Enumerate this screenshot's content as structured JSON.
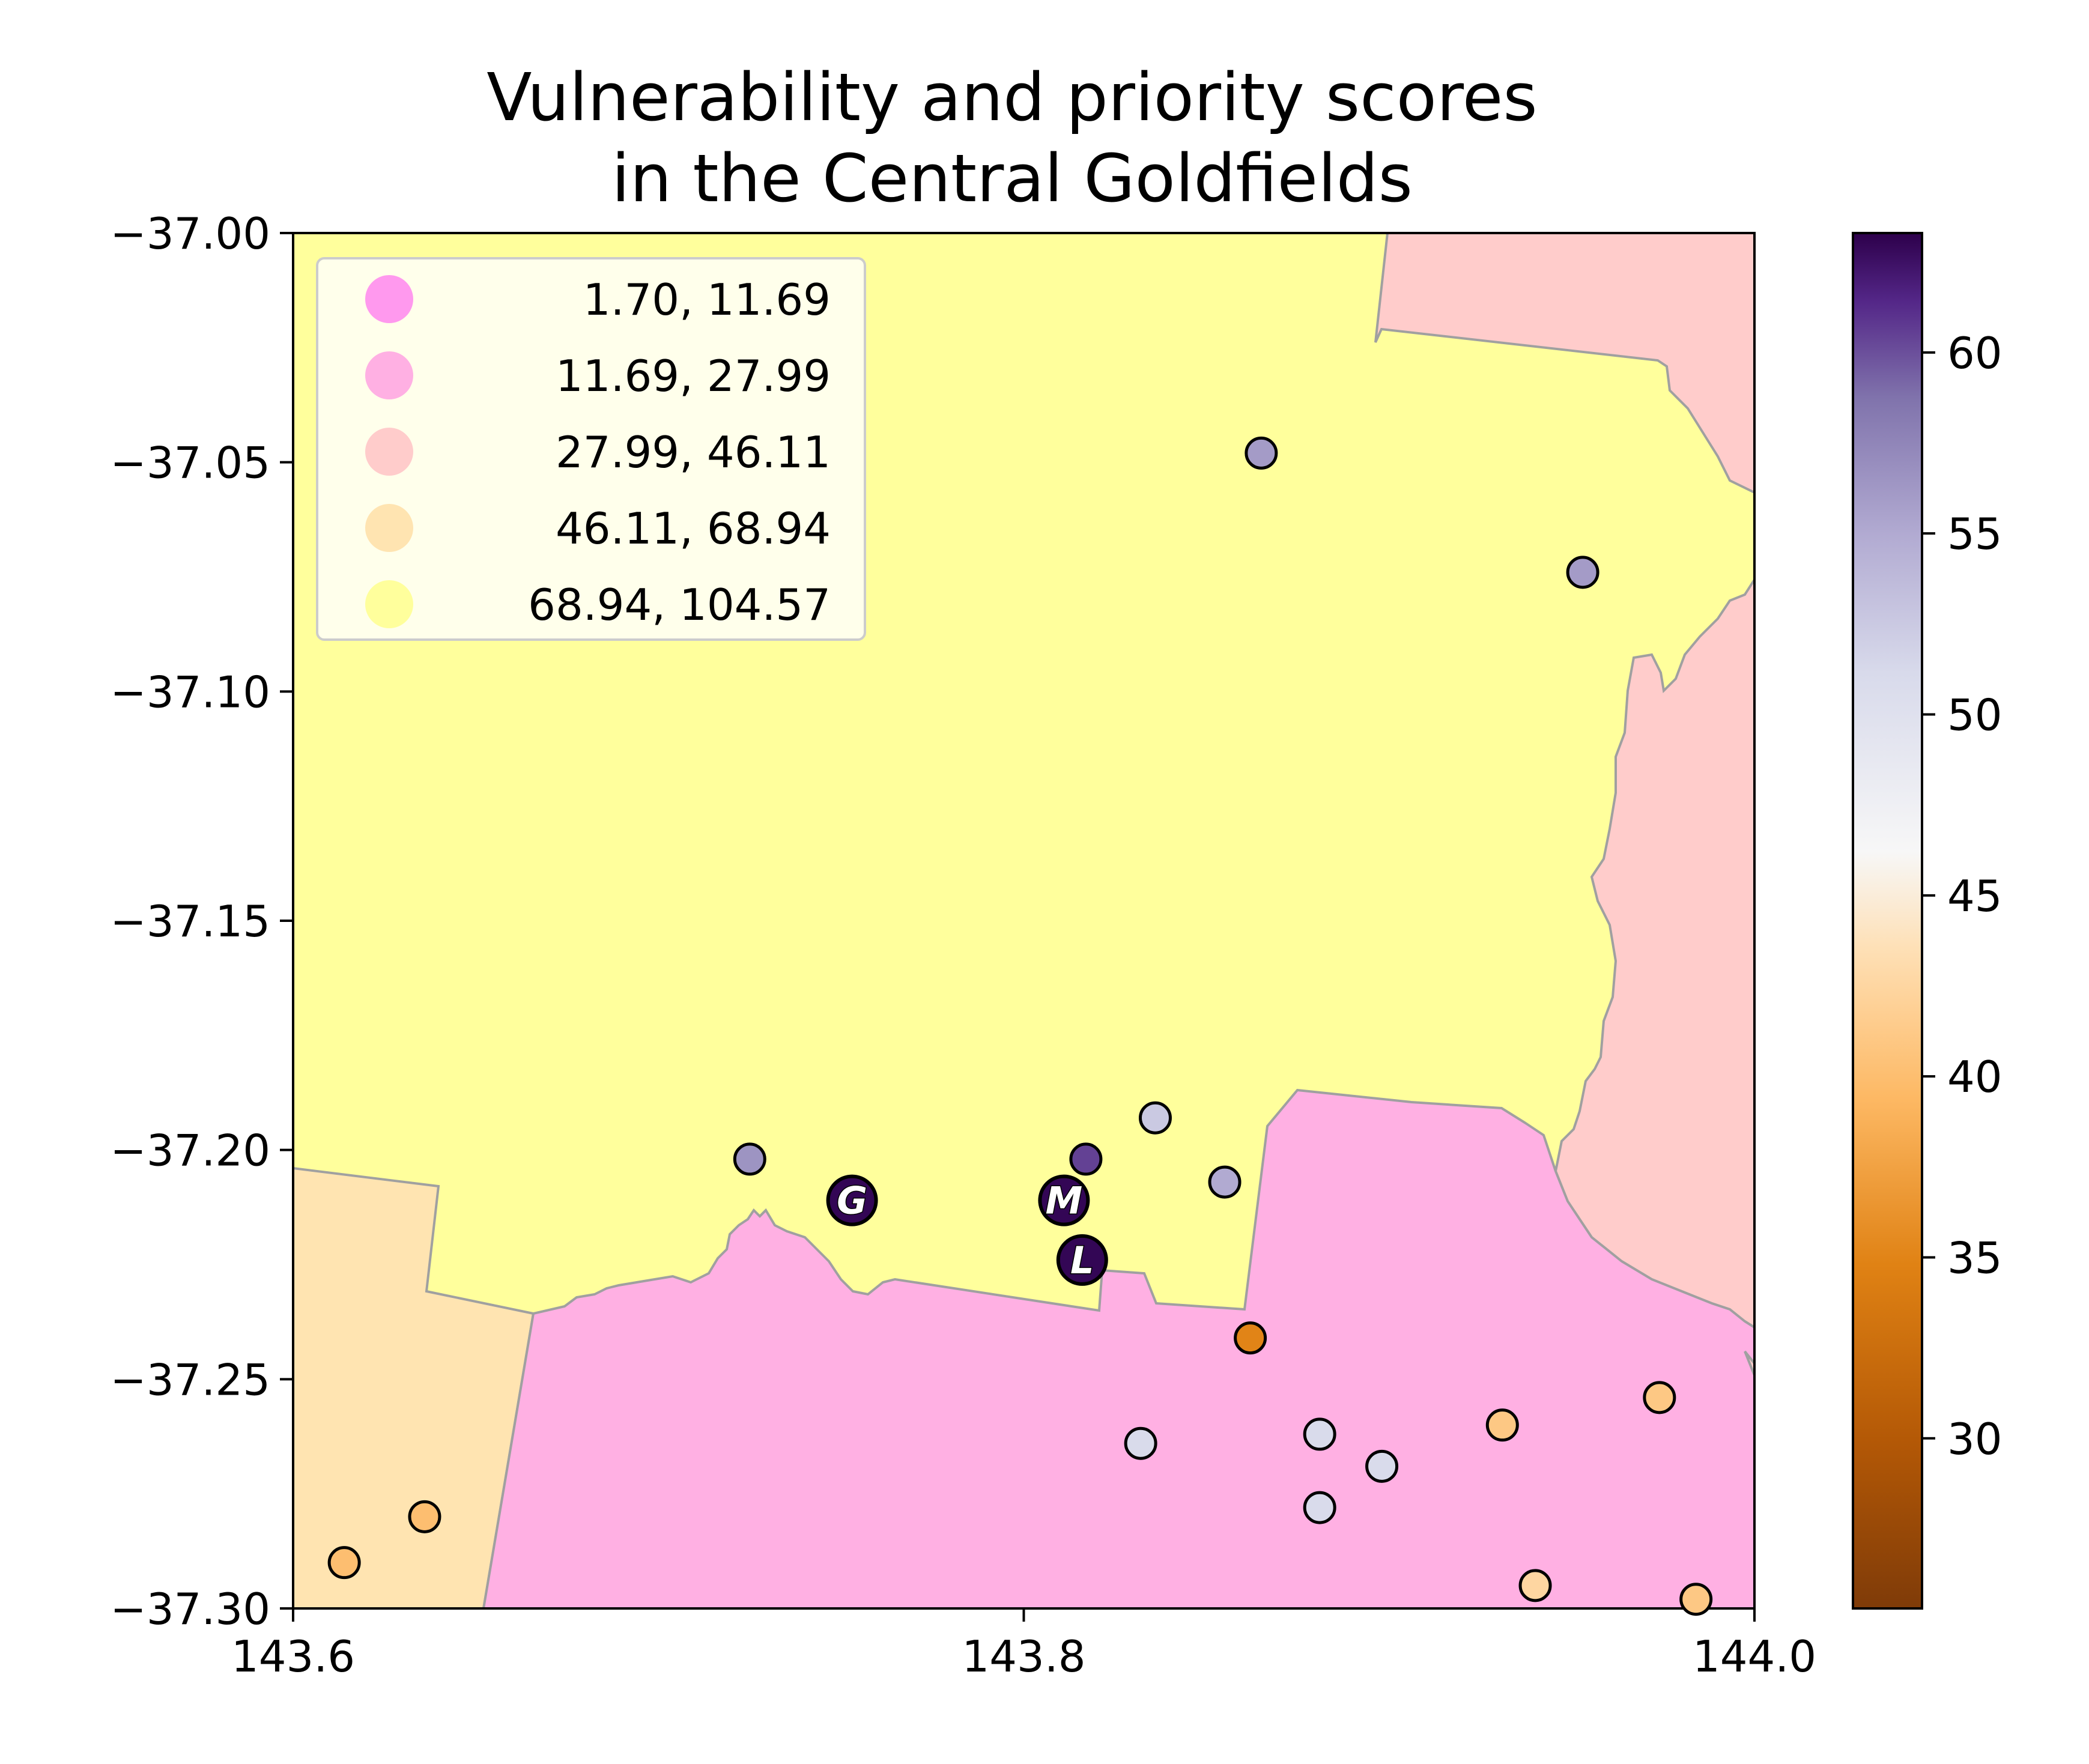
{
  "title_line1": "Vulnerability and priority scores",
  "title_line2": "in the Central Goldfields",
  "map": {
    "x_range": [
      143.6,
      144.0
    ],
    "y_range": [
      -37.3,
      -37.0
    ],
    "x_ticks": [
      "143.6",
      "143.8",
      "144.0"
    ],
    "x_tick_values": [
      143.6,
      143.8,
      144.0
    ],
    "y_ticks": [
      "−37.00",
      "−37.05",
      "−37.10",
      "−37.15",
      "−37.20",
      "−37.25",
      "−37.30"
    ],
    "y_tick_values": [
      -37.0,
      -37.05,
      -37.1,
      -37.15,
      -37.2,
      -37.25,
      -37.3
    ],
    "region_colors": {
      "1.70-11.69": "#ff99ee",
      "11.69-27.99": "#ffb0e3",
      "27.99-46.11": "#ffcccb",
      "46.11-68.94": "#ffe4b1",
      "68.94-104.57": "#ffff9c"
    },
    "boundary_color": "#a0a0a0"
  },
  "legend": {
    "items": [
      {
        "label": " 1.70,  11.69",
        "color": "#ff99ee"
      },
      {
        "label": "11.69,  27.99",
        "color": "#ffb0e3"
      },
      {
        "label": "27.99,  46.11",
        "color": "#ffcccb"
      },
      {
        "label": "46.11,  68.94",
        "color": "#ffe4b1"
      },
      {
        "label": "68.94, 104.57",
        "color": "#ffff9c"
      }
    ]
  },
  "colorbar": {
    "range": [
      25.3,
      63.3
    ],
    "ticks": [
      "30",
      "35",
      "40",
      "45",
      "50",
      "55",
      "60"
    ],
    "tick_values": [
      30,
      35,
      40,
      45,
      50,
      55,
      60
    ],
    "colormap": "PuOr"
  },
  "points": [
    {
      "lon": 143.865,
      "lat": -37.048,
      "score": 56.0
    },
    {
      "lon": 143.953,
      "lat": -37.074,
      "score": 56.0
    },
    {
      "lon": 143.836,
      "lat": -37.193,
      "score": 52.5
    },
    {
      "lon": 143.725,
      "lat": -37.202,
      "score": 56.5
    },
    {
      "lon": 143.817,
      "lat": -37.202,
      "score": 60.5
    },
    {
      "lon": 143.855,
      "lat": -37.207,
      "score": 55.0
    },
    {
      "lon": 143.862,
      "lat": -37.241,
      "score": 35.0
    },
    {
      "lon": 143.832,
      "lat": -37.264,
      "score": 51.0
    },
    {
      "lon": 143.881,
      "lat": -37.262,
      "score": 51.0
    },
    {
      "lon": 143.898,
      "lat": -37.269,
      "score": 51.0
    },
    {
      "lon": 143.881,
      "lat": -37.278,
      "score": 51.0
    },
    {
      "lon": 143.931,
      "lat": -37.26,
      "score": 41.0
    },
    {
      "lon": 143.974,
      "lat": -37.254,
      "score": 41.0
    },
    {
      "lon": 143.94,
      "lat": -37.295,
      "score": 42.5
    },
    {
      "lon": 143.984,
      "lat": -37.298,
      "score": 41.0
    },
    {
      "lon": 143.614,
      "lat": -37.29,
      "score": 40.0
    },
    {
      "lon": 143.636,
      "lat": -37.28,
      "score": 40.0
    }
  ],
  "labeled_points": [
    {
      "lon": 143.753,
      "lat": -37.211,
      "label": "G",
      "score": 63.0
    },
    {
      "lon": 143.811,
      "lat": -37.211,
      "label": "M",
      "score": 63.0
    },
    {
      "lon": 143.816,
      "lat": -37.224,
      "label": "L",
      "score": 63.0
    }
  ]
}
